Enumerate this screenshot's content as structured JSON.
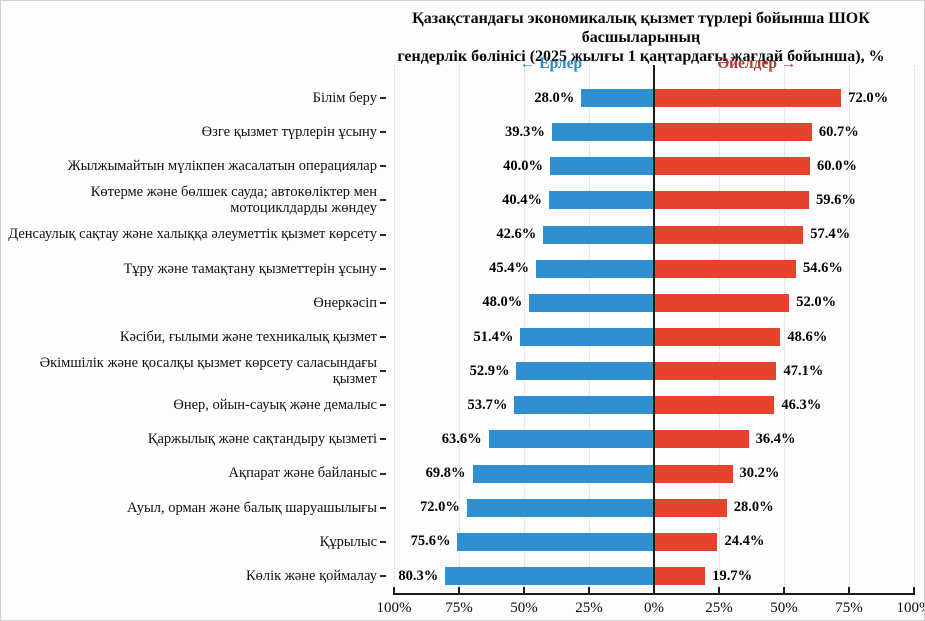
{
  "title": {
    "line1": "Қазақстандағы экономикалық қызмет түрлері бойынша ШОК басшыларының",
    "line2": "гендерлік бөлінісі (2025 жылғы 1 қаңтардағы жағдай бойынша), %"
  },
  "legend": {
    "men_label": "← Ерлер",
    "women_label": "Әйелдер →",
    "men_color": "#2e86c1",
    "women_color": "#b03a2e"
  },
  "chart_data": {
    "type": "bar",
    "subtype": "diverging-horizontal",
    "unit": "%",
    "axis_range_each_side": [
      0,
      100
    ],
    "grid": "dotted-vertical",
    "x_ticks": [
      "100%",
      "75%",
      "50%",
      "25%",
      "0%",
      "25%",
      "50%",
      "75%",
      "100%"
    ],
    "series": [
      {
        "name": "Ерлер",
        "color": "#2e90d1",
        "side": "left"
      },
      {
        "name": "Әйелдер",
        "color": "#e6432f",
        "side": "right"
      }
    ],
    "rows": [
      {
        "category": "Білім беру",
        "men": 28.0,
        "women": 72.0,
        "men_label": "28.0%",
        "women_label": "72.0%"
      },
      {
        "category": "Өзге қызмет түрлерін ұсыну",
        "men": 39.3,
        "women": 60.7,
        "men_label": "39.3%",
        "women_label": "60.7%"
      },
      {
        "category": "Жылжымайтын мүлікпен жасалатын операциялар",
        "men": 40.0,
        "women": 60.0,
        "men_label": "40.0%",
        "women_label": "60.0%"
      },
      {
        "category": "Көтерме және бөлшек сауда; автокөліктер  мен\nмотоциклдарды жөндеу",
        "men": 40.4,
        "women": 59.6,
        "men_label": "40.4%",
        "women_label": "59.6%"
      },
      {
        "category": "Денсаулық сақтау және халыққа әлеуметтік қызмет көрсету",
        "men": 42.6,
        "women": 57.4,
        "men_label": "42.6%",
        "women_label": "57.4%"
      },
      {
        "category": "Тұру және тамақтану қызметтерін ұсыну",
        "men": 45.4,
        "women": 54.6,
        "men_label": "45.4%",
        "women_label": "54.6%"
      },
      {
        "category": "Өнеркәсіп",
        "men": 48.0,
        "women": 52.0,
        "men_label": "48.0%",
        "women_label": "52.0%"
      },
      {
        "category": "Кәсіби, ғылыми және техникалық қызмет",
        "men": 51.4,
        "women": 48.6,
        "men_label": "51.4%",
        "women_label": "48.6%"
      },
      {
        "category": "Әкімшілік және қосалқы қызмет көрсету саласындағы\nқызмет",
        "men": 52.9,
        "women": 47.1,
        "men_label": "52.9%",
        "women_label": "47.1%"
      },
      {
        "category": "Өнер, ойын-сауық және демалыс",
        "men": 53.7,
        "women": 46.3,
        "men_label": "53.7%",
        "women_label": "46.3%"
      },
      {
        "category": "Қаржылық және сақтандыру қызметі",
        "men": 63.6,
        "women": 36.4,
        "men_label": "63.6%",
        "women_label": "36.4%"
      },
      {
        "category": "Ақпарат және байланыс",
        "men": 69.8,
        "women": 30.2,
        "men_label": "69.8%",
        "women_label": "30.2%"
      },
      {
        "category": "Ауыл, орман және балық шаруашылығы",
        "men": 72.0,
        "women": 28.0,
        "men_label": "72.0%",
        "women_label": "28.0%"
      },
      {
        "category": "Құрылыс",
        "men": 75.6,
        "women": 24.4,
        "men_label": "75.6%",
        "women_label": "24.4%"
      },
      {
        "category": "Көлік және қоймалау",
        "men": 80.3,
        "women": 19.7,
        "men_label": "80.3%",
        "women_label": "19.7%"
      }
    ]
  }
}
